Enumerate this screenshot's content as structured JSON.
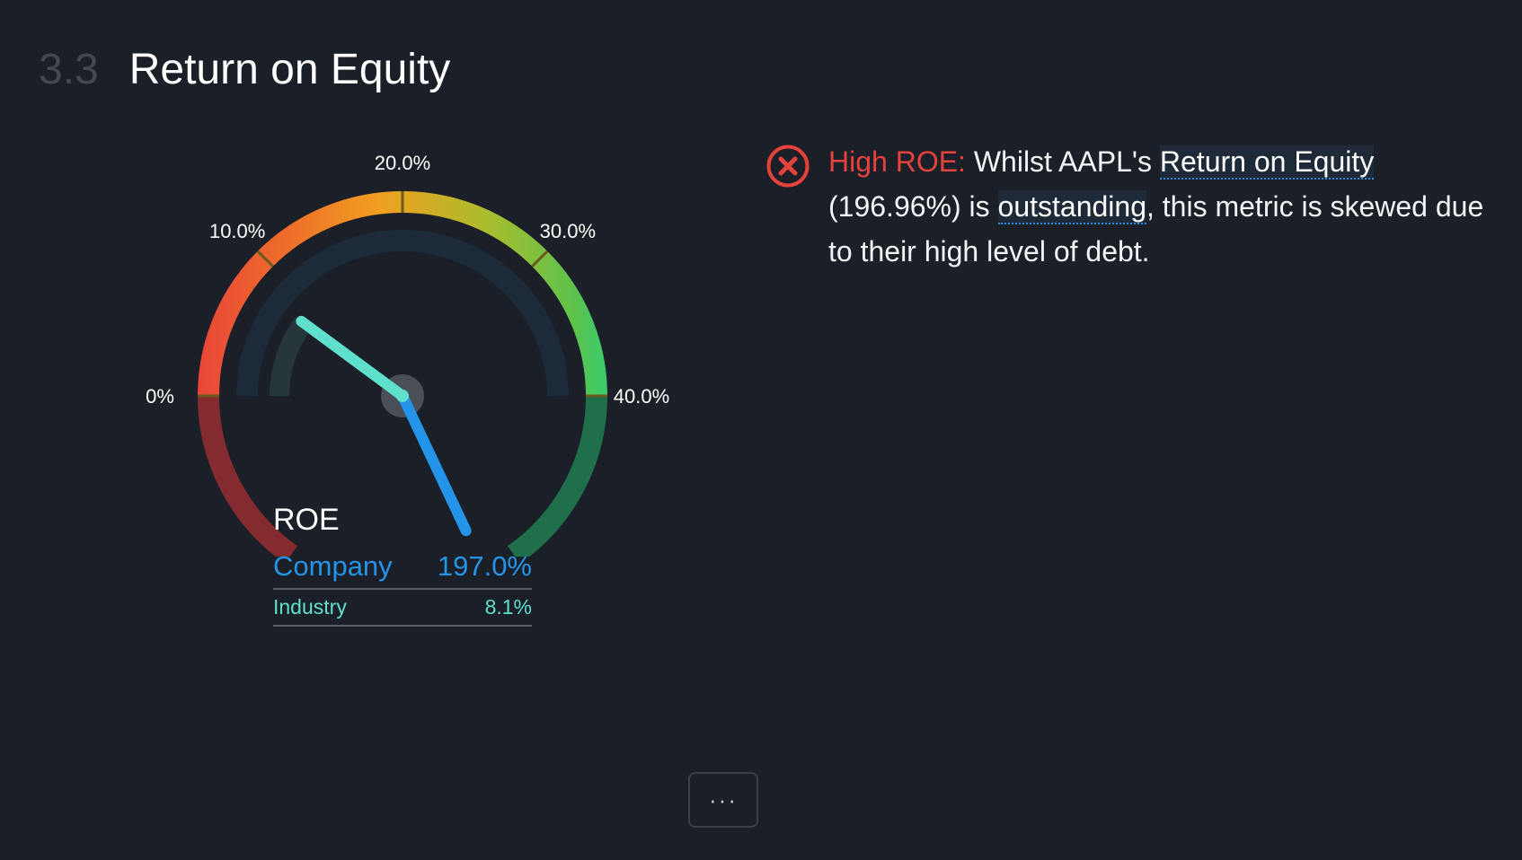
{
  "section": {
    "number": "3.3",
    "title": "Return on Equity"
  },
  "chart_data": {
    "type": "gauge",
    "scale_min": 0,
    "scale_max": 40,
    "tick_labels": [
      "0%",
      "10.0%",
      "20.0%",
      "30.0%",
      "40.0%"
    ],
    "tick_values": [
      0,
      10,
      20,
      30,
      40
    ],
    "series": [
      {
        "name": "Company",
        "value": 197.0,
        "display": "197.0%",
        "color": "#2394e8"
      },
      {
        "name": "Industry",
        "value": 8.1,
        "display": "8.1%",
        "color": "#5fe0cd"
      }
    ],
    "title": "ROE"
  },
  "legend": {
    "title": "ROE",
    "company_label": "Company",
    "company_value": "197.0%",
    "industry_label": "Industry",
    "industry_value": "8.1%"
  },
  "insight": {
    "status": "fail",
    "label": "High ROE:",
    "text_1": "Whilst AAPL's",
    "link_1": "Return on Equity",
    "text_2": "(196.96%) is",
    "link_2": "outstanding",
    "text_3": ", this metric is skewed due to their high level of debt."
  },
  "more_button": {
    "label": "···"
  },
  "colors": {
    "background": "#1b1f27",
    "company": "#2394e8",
    "industry": "#5fe0cd",
    "negative": "#e5423c"
  }
}
